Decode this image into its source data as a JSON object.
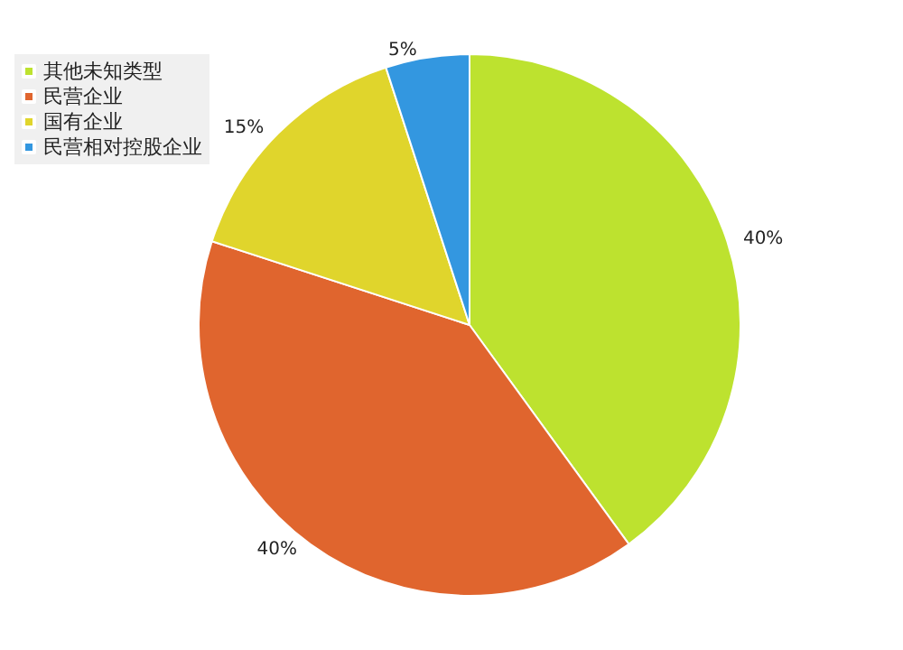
{
  "chart_data": {
    "type": "pie",
    "categories": [
      "其他未知类型",
      "民营企业",
      "国有企业",
      "民营相对控股企业"
    ],
    "values": [
      40,
      40,
      15,
      5
    ],
    "colors": [
      "#bde22f",
      "#e0652e",
      "#e0d52c",
      "#3397e0"
    ],
    "value_labels": [
      "40%",
      "40%",
      "15%",
      "5%"
    ],
    "legend": "top left"
  }
}
